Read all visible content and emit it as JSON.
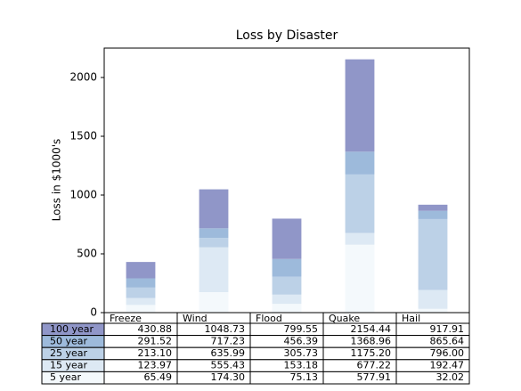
{
  "chart_data": {
    "type": "stacked_bar",
    "title": "Loss by Disaster",
    "y_label": "Loss in $1000's",
    "categories": [
      "Freeze",
      "Wind",
      "Flood",
      "Quake",
      "Hail"
    ],
    "series": [
      {
        "name": "100 year",
        "color": "#9096c8",
        "values": [
          139.36,
          331.5,
          343.16,
          785.48,
          52.27
        ]
      },
      {
        "name": "50 year",
        "color": "#9dbadb",
        "values": [
          78.42,
          81.24,
          150.66,
          193.76,
          69.64
        ]
      },
      {
        "name": "25 year",
        "color": "#bcd1e7",
        "values": [
          89.13,
          80.56,
          152.55,
          497.98,
          603.53
        ]
      },
      {
        "name": "15 year",
        "color": "#dde9f4",
        "values": [
          58.48,
          381.13,
          78.05,
          99.31,
          160.45
        ]
      },
      {
        "name": "5 year",
        "color": "#f4f9fc",
        "values": [
          65.49,
          174.3,
          75.13,
          577.91,
          32.02
        ]
      }
    ],
    "ylim": [
      0,
      2250
    ],
    "yticks": [
      0,
      500,
      1000,
      1500,
      2000
    ],
    "table": {
      "rows": [
        [
          "430.88",
          "1048.73",
          "799.55",
          "2154.44",
          "917.91"
        ],
        [
          "291.52",
          "717.23",
          "456.39",
          "1368.96",
          "865.64"
        ],
        [
          "213.10",
          "635.99",
          "305.73",
          "1175.20",
          "796.00"
        ],
        [
          "123.97",
          "555.43",
          "153.18",
          "677.22",
          "192.47"
        ],
        [
          "65.49",
          "174.30",
          "75.13",
          "577.91",
          "32.02"
        ]
      ]
    }
  }
}
